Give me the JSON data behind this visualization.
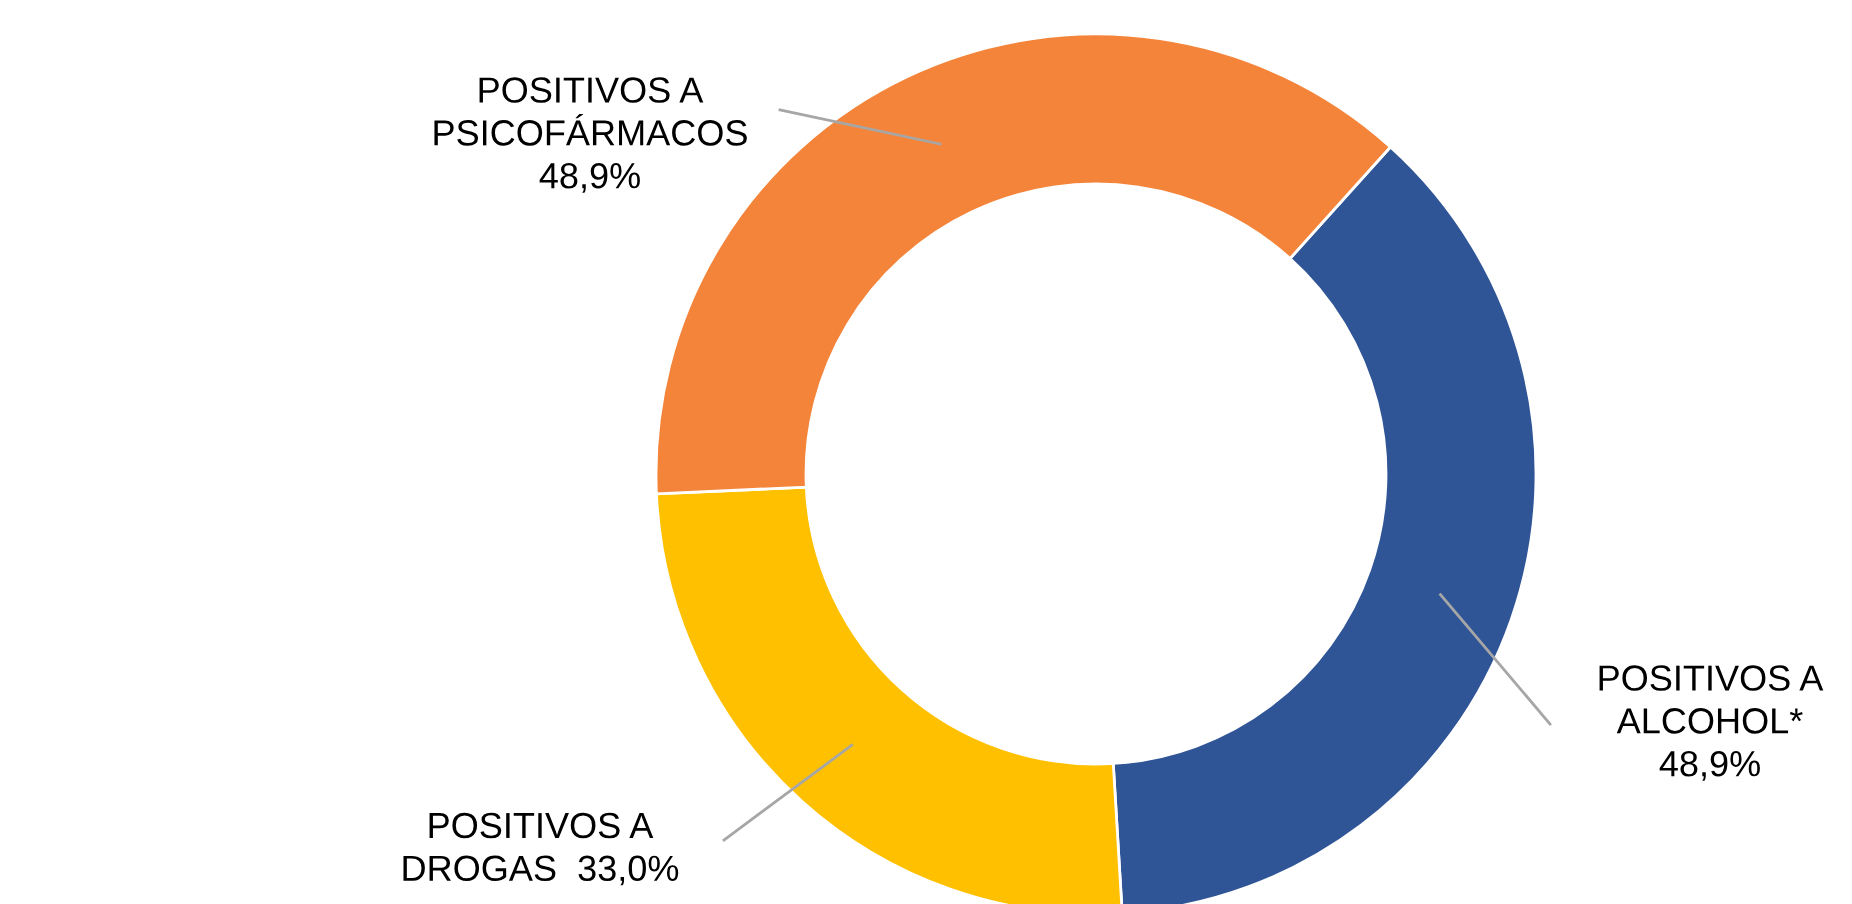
{
  "chart_data": {
    "type": "donut",
    "categories": [
      "POSITIVOS A\nALCOHOL*",
      "POSITIVOS A\nDROGAS",
      "POSITIVOS A\nPSICOFÁRMACOS"
    ],
    "values": [
      48.9,
      33.0,
      48.9
    ],
    "value_labels": [
      "48,9%",
      "33,0%",
      "48,9%"
    ],
    "colors": [
      "#2f5597",
      "#ffc000",
      "#f4843a"
    ]
  }
}
